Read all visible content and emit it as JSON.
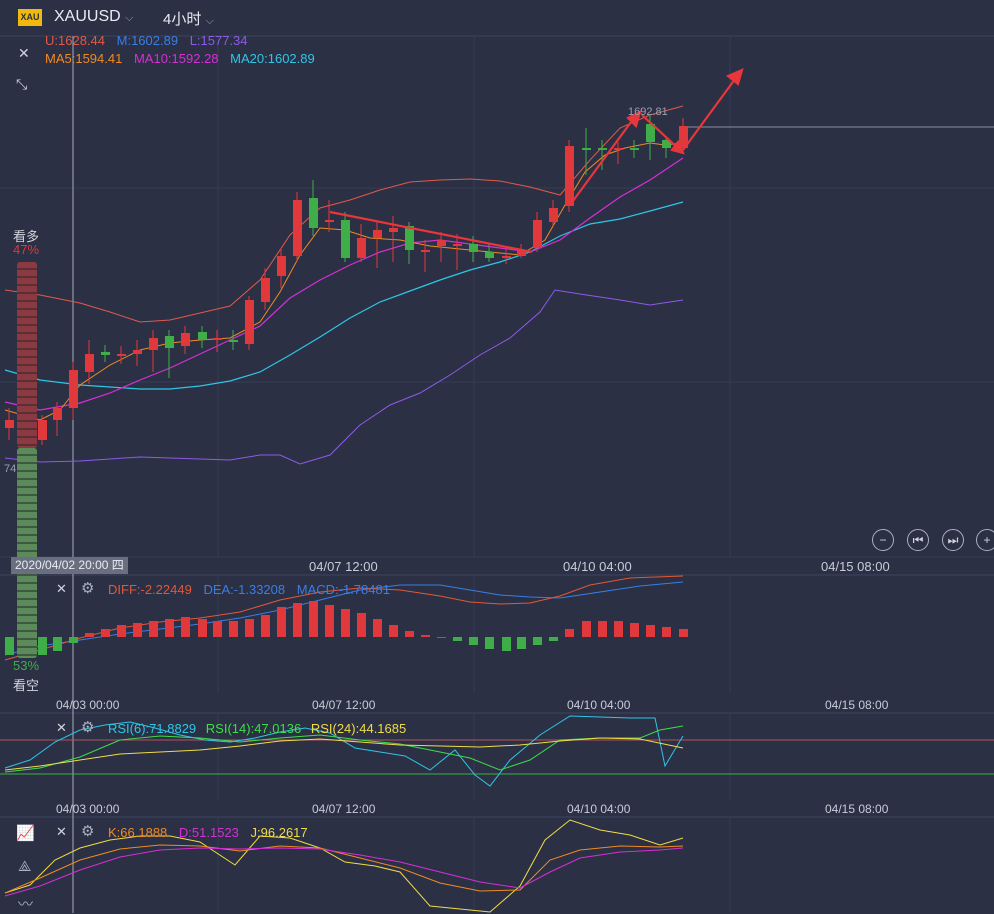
{
  "header": {
    "symbol_badge": "XAU",
    "symbol": "XAUUSD",
    "period": "4小时"
  },
  "main": {
    "boll": {
      "u": "U:1628.44",
      "m": "M:1602.89",
      "l": "L:1577.34"
    },
    "ma": {
      "ma5": "MA5:1594.41",
      "ma10": "MA10:1592.28",
      "ma20": "MA20:1602.89"
    },
    "price_tag": "1692.81",
    "left_value": "74",
    "x_labels": [
      "04/07 12:00",
      "04/10 04:00",
      "04/15 08:00"
    ],
    "crosshair_date": "2020/04/02 20:00 四"
  },
  "sentiment": {
    "bull_label": "看多",
    "bull_pct": "47%",
    "bear_pct": "53%",
    "bear_label": "看空"
  },
  "macd": {
    "diff": "DIFF:-2.22449",
    "dea": "DEA:-1.33208",
    "macd": "MACD:-1.78481"
  },
  "rsi": {
    "rsi6": "RSI(6):71.8829",
    "rsi14": "RSI(14):47.0136",
    "rsi24": "RSI(24):44.1685"
  },
  "kdj": {
    "k": "K:66.1888",
    "d": "D:51.1523",
    "j": "J:96.2617"
  },
  "sub_x_labels": [
    "04/03 00:00",
    "04/07 12:00",
    "04/10 04:00",
    "04/15 08:00"
  ],
  "colors": {
    "bg": "#2b3044",
    "up": "#e0383b",
    "down": "#3fae49",
    "ma5": "#f08a24",
    "ma10": "#d62fd6",
    "ma20": "#2fc6e6",
    "boll_u": "#e05a4a",
    "boll_l": "#8f5ae8"
  }
}
